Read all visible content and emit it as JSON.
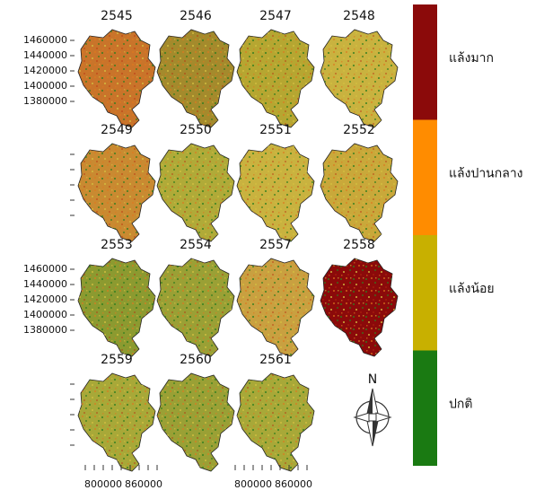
{
  "panels": [
    {
      "title": "2545",
      "color": "#c9742a"
    },
    {
      "title": "2546",
      "color": "#a48a2c"
    },
    {
      "title": "2547",
      "color": "#b6a631"
    },
    {
      "title": "2548",
      "color": "#c9b23f"
    },
    {
      "title": "2549",
      "color": "#c98a31"
    },
    {
      "title": "2550",
      "color": "#b0aa38"
    },
    {
      "title": "2551",
      "color": "#c9b23f"
    },
    {
      "title": "2552",
      "color": "#c9a83a"
    },
    {
      "title": "2553",
      "color": "#8c9a30"
    },
    {
      "title": "2554",
      "color": "#9aa035"
    },
    {
      "title": "2557",
      "color": "#c9a040"
    },
    {
      "title": "2558",
      "color": "#8b0a0a"
    },
    {
      "title": "2559",
      "color": "#a8a838"
    },
    {
      "title": "2560",
      "color": "#9aa035"
    },
    {
      "title": "2561",
      "color": "#a8a838"
    }
  ],
  "y_axis": {
    "ticks": [
      1460000,
      1440000,
      1420000,
      1400000,
      1380000
    ]
  },
  "x_axis": {
    "ticks": [
      800000,
      860000
    ]
  },
  "legend": [
    {
      "label": "แล้งมาก",
      "color": "#8b0a0a"
    },
    {
      "label": "แล้งปานกลาง",
      "color": "#ff8c00"
    },
    {
      "label": "แล้งน้อย",
      "color": "#c8b000"
    },
    {
      "label": "ปกติ",
      "color": "#1a7a12"
    }
  ],
  "north_label": "N"
}
